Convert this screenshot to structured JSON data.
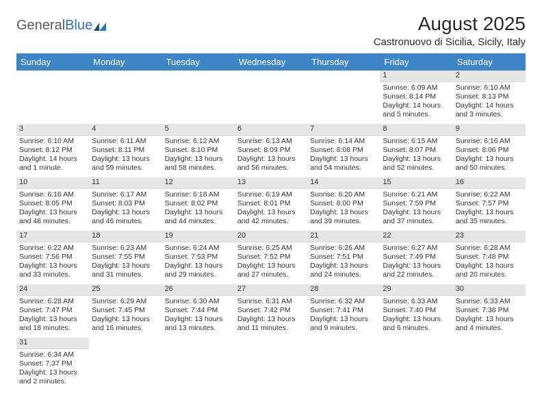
{
  "logo": {
    "general": "General",
    "blue": "Blue"
  },
  "title": "August 2025",
  "location": "Castronuovo di Sicilia, Sicily, Italy",
  "colors": {
    "header_bg": "#3d85c6",
    "header_text": "#ffffff",
    "daynum_bg": "#e6e6e6",
    "text": "#333333",
    "logo_general": "#5a5a5a",
    "logo_blue": "#2e75b6"
  },
  "dayNames": [
    "Sunday",
    "Monday",
    "Tuesday",
    "Wednesday",
    "Thursday",
    "Friday",
    "Saturday"
  ],
  "weeks": [
    [
      null,
      null,
      null,
      null,
      null,
      {
        "d": "1",
        "sr": "Sunrise: 6:09 AM",
        "ss": "Sunset: 8:14 PM",
        "dl1": "Daylight: 14 hours",
        "dl2": "and 5 minutes."
      },
      {
        "d": "2",
        "sr": "Sunrise: 6:10 AM",
        "ss": "Sunset: 8:13 PM",
        "dl1": "Daylight: 14 hours",
        "dl2": "and 3 minutes."
      }
    ],
    [
      {
        "d": "3",
        "sr": "Sunrise: 6:10 AM",
        "ss": "Sunset: 8:12 PM",
        "dl1": "Daylight: 14 hours",
        "dl2": "and 1 minute."
      },
      {
        "d": "4",
        "sr": "Sunrise: 6:11 AM",
        "ss": "Sunset: 8:11 PM",
        "dl1": "Daylight: 13 hours",
        "dl2": "and 59 minutes."
      },
      {
        "d": "5",
        "sr": "Sunrise: 6:12 AM",
        "ss": "Sunset: 8:10 PM",
        "dl1": "Daylight: 13 hours",
        "dl2": "and 58 minutes."
      },
      {
        "d": "6",
        "sr": "Sunrise: 6:13 AM",
        "ss": "Sunset: 8:09 PM",
        "dl1": "Daylight: 13 hours",
        "dl2": "and 56 minutes."
      },
      {
        "d": "7",
        "sr": "Sunrise: 6:14 AM",
        "ss": "Sunset: 8:08 PM",
        "dl1": "Daylight: 13 hours",
        "dl2": "and 54 minutes."
      },
      {
        "d": "8",
        "sr": "Sunrise: 6:15 AM",
        "ss": "Sunset: 8:07 PM",
        "dl1": "Daylight: 13 hours",
        "dl2": "and 52 minutes."
      },
      {
        "d": "9",
        "sr": "Sunrise: 6:16 AM",
        "ss": "Sunset: 8:06 PM",
        "dl1": "Daylight: 13 hours",
        "dl2": "and 50 minutes."
      }
    ],
    [
      {
        "d": "10",
        "sr": "Sunrise: 6:16 AM",
        "ss": "Sunset: 8:05 PM",
        "dl1": "Daylight: 13 hours",
        "dl2": "and 48 minutes."
      },
      {
        "d": "11",
        "sr": "Sunrise: 6:17 AM",
        "ss": "Sunset: 8:03 PM",
        "dl1": "Daylight: 13 hours",
        "dl2": "and 46 minutes."
      },
      {
        "d": "12",
        "sr": "Sunrise: 6:18 AM",
        "ss": "Sunset: 8:02 PM",
        "dl1": "Daylight: 13 hours",
        "dl2": "and 44 minutes."
      },
      {
        "d": "13",
        "sr": "Sunrise: 6:19 AM",
        "ss": "Sunset: 8:01 PM",
        "dl1": "Daylight: 13 hours",
        "dl2": "and 42 minutes."
      },
      {
        "d": "14",
        "sr": "Sunrise: 6:20 AM",
        "ss": "Sunset: 8:00 PM",
        "dl1": "Daylight: 13 hours",
        "dl2": "and 39 minutes."
      },
      {
        "d": "15",
        "sr": "Sunrise: 6:21 AM",
        "ss": "Sunset: 7:59 PM",
        "dl1": "Daylight: 13 hours",
        "dl2": "and 37 minutes."
      },
      {
        "d": "16",
        "sr": "Sunrise: 6:22 AM",
        "ss": "Sunset: 7:57 PM",
        "dl1": "Daylight: 13 hours",
        "dl2": "and 35 minutes."
      }
    ],
    [
      {
        "d": "17",
        "sr": "Sunrise: 6:22 AM",
        "ss": "Sunset: 7:56 PM",
        "dl1": "Daylight: 13 hours",
        "dl2": "and 33 minutes."
      },
      {
        "d": "18",
        "sr": "Sunrise: 6:23 AM",
        "ss": "Sunset: 7:55 PM",
        "dl1": "Daylight: 13 hours",
        "dl2": "and 31 minutes."
      },
      {
        "d": "19",
        "sr": "Sunrise: 6:24 AM",
        "ss": "Sunset: 7:53 PM",
        "dl1": "Daylight: 13 hours",
        "dl2": "and 29 minutes."
      },
      {
        "d": "20",
        "sr": "Sunrise: 6:25 AM",
        "ss": "Sunset: 7:52 PM",
        "dl1": "Daylight: 13 hours",
        "dl2": "and 27 minutes."
      },
      {
        "d": "21",
        "sr": "Sunrise: 6:26 AM",
        "ss": "Sunset: 7:51 PM",
        "dl1": "Daylight: 13 hours",
        "dl2": "and 24 minutes."
      },
      {
        "d": "22",
        "sr": "Sunrise: 6:27 AM",
        "ss": "Sunset: 7:49 PM",
        "dl1": "Daylight: 13 hours",
        "dl2": "and 22 minutes."
      },
      {
        "d": "23",
        "sr": "Sunrise: 6:28 AM",
        "ss": "Sunset: 7:48 PM",
        "dl1": "Daylight: 13 hours",
        "dl2": "and 20 minutes."
      }
    ],
    [
      {
        "d": "24",
        "sr": "Sunrise: 6:28 AM",
        "ss": "Sunset: 7:47 PM",
        "dl1": "Daylight: 13 hours",
        "dl2": "and 18 minutes."
      },
      {
        "d": "25",
        "sr": "Sunrise: 6:29 AM",
        "ss": "Sunset: 7:45 PM",
        "dl1": "Daylight: 13 hours",
        "dl2": "and 16 minutes."
      },
      {
        "d": "26",
        "sr": "Sunrise: 6:30 AM",
        "ss": "Sunset: 7:44 PM",
        "dl1": "Daylight: 13 hours",
        "dl2": "and 13 minutes."
      },
      {
        "d": "27",
        "sr": "Sunrise: 6:31 AM",
        "ss": "Sunset: 7:42 PM",
        "dl1": "Daylight: 13 hours",
        "dl2": "and 11 minutes."
      },
      {
        "d": "28",
        "sr": "Sunrise: 6:32 AM",
        "ss": "Sunset: 7:41 PM",
        "dl1": "Daylight: 13 hours",
        "dl2": "and 9 minutes."
      },
      {
        "d": "29",
        "sr": "Sunrise: 6:33 AM",
        "ss": "Sunset: 7:40 PM",
        "dl1": "Daylight: 13 hours",
        "dl2": "and 6 minutes."
      },
      {
        "d": "30",
        "sr": "Sunrise: 6:33 AM",
        "ss": "Sunset: 7:38 PM",
        "dl1": "Daylight: 13 hours",
        "dl2": "and 4 minutes."
      }
    ],
    [
      {
        "d": "31",
        "sr": "Sunrise: 6:34 AM",
        "ss": "Sunset: 7:37 PM",
        "dl1": "Daylight: 13 hours",
        "dl2": "and 2 minutes."
      },
      null,
      null,
      null,
      null,
      null,
      null
    ]
  ]
}
